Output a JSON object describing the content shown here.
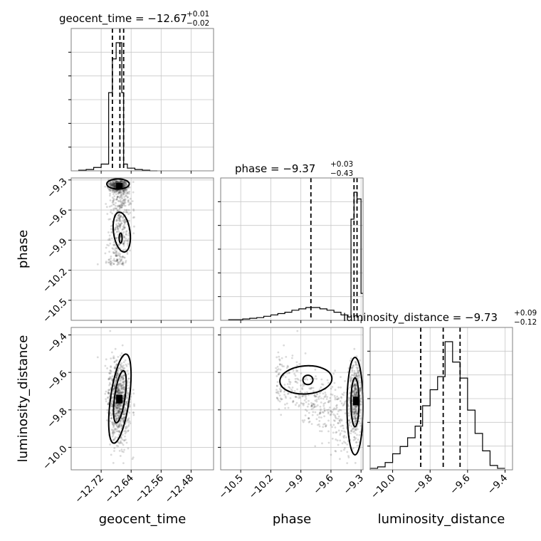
{
  "chart_data": {
    "type": "corner",
    "parameters": [
      "geocent_time",
      "phase",
      "luminosity_distance"
    ],
    "axis_labels": {
      "geocent_time": "geocent_time",
      "phase": "phase",
      "luminosity_distance": "luminosity_distance"
    },
    "titles": [
      {
        "text": "geocent_time = −12.67",
        "plus": "+0.01",
        "minus": "−0.02"
      },
      {
        "text": "phase = −9.37",
        "plus": "+0.03",
        "minus": "−0.43"
      },
      {
        "text": "luminosity_distance = −9.73",
        "plus": "+0.09",
        "minus": "−0.12"
      }
    ],
    "ranges": {
      "geocent_time": [
        -12.8,
        -12.42
      ],
      "phase": [
        -10.7,
        -9.28
      ],
      "luminosity_distance": [
        -10.12,
        -9.36
      ]
    },
    "ticks": {
      "geocent_time": [
        -12.72,
        -12.64,
        -12.56,
        -12.48
      ],
      "geocent_time_labels": [
        "−12.72",
        "−12.64",
        "−12.56",
        "−12.48"
      ],
      "phase": [
        -10.5,
        -10.2,
        -9.9,
        -9.6,
        -9.3
      ],
      "phase_labels": [
        "−10.5",
        "−10.2",
        "−9.9",
        "−9.6",
        "−9.3"
      ],
      "luminosity_distance": [
        -10.0,
        -9.8,
        -9.6,
        -9.4
      ],
      "luminosity_distance_labels": [
        "−10.0",
        "−9.8",
        "−9.6",
        "−9.4"
      ]
    },
    "quantiles": {
      "geocent_time": [
        -12.69,
        -12.67,
        -12.66
      ],
      "phase": [
        -9.8,
        -9.37,
        -9.34
      ],
      "luminosity_distance": [
        -9.85,
        -9.73,
        -9.64
      ]
    },
    "histograms": {
      "geocent_time": {
        "edges": [
          -12.78,
          -12.76,
          -12.74,
          -12.72,
          -12.7,
          -12.69,
          -12.68,
          -12.675,
          -12.665,
          -12.66,
          -12.65,
          -12.63,
          -12.61,
          -12.59,
          -12.57
        ],
        "counts": [
          0.5,
          1,
          2.5,
          5,
          58,
          83,
          95,
          95,
          58,
          5,
          2,
          1,
          0.5,
          0
        ]
      },
      "phase": {
        "edges": [
          -10.62,
          -10.55,
          -10.48,
          -10.41,
          -10.34,
          -10.27,
          -10.2,
          -10.13,
          -10.06,
          -9.99,
          -9.92,
          -9.85,
          -9.78,
          -9.71,
          -9.64,
          -9.57,
          -9.5,
          -9.43,
          -9.4,
          -9.37,
          -9.34,
          -9.3,
          -9.28
        ],
        "counts": [
          0.5,
          0.5,
          1,
          1.5,
          2,
          3,
          4,
          5,
          6,
          7.5,
          8.5,
          9.5,
          9.5,
          8.5,
          7.5,
          6,
          4,
          2.5,
          75,
          95,
          90,
          20
        ]
      },
      "luminosity_distance": {
        "edges": [
          -10.12,
          -10.08,
          -10.04,
          -10.0,
          -9.96,
          -9.92,
          -9.88,
          -9.84,
          -9.8,
          -9.76,
          -9.72,
          -9.68,
          -9.64,
          -9.6,
          -9.56,
          -9.52,
          -9.48,
          -9.44,
          -9.4
        ],
        "counts": [
          1,
          2,
          5,
          11,
          16,
          22,
          30,
          44,
          55,
          64,
          88,
          74,
          63,
          41,
          25,
          13,
          3,
          1
        ]
      }
    }
  }
}
